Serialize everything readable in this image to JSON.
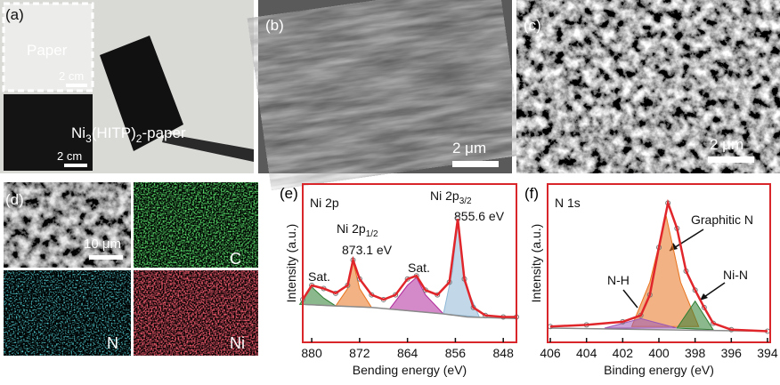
{
  "panels": {
    "a": {
      "label": "(a)",
      "paper_label": "Paper",
      "scale_top": "2 cm",
      "scale_bottom": "2 cm",
      "sample_label_parts": [
        "Ni",
        "3",
        "(HITP)",
        "2",
        "-paper"
      ]
    },
    "b": {
      "label": "(b)",
      "scale": "2 μm"
    },
    "c": {
      "label": "(c)",
      "scale": "2 μm"
    },
    "d": {
      "label": "(d)",
      "scale": "10 μm",
      "maps": [
        "C",
        "N",
        "Ni"
      ]
    }
  },
  "chart_data": [
    {
      "type": "line",
      "panel_label": "(e)",
      "title": "Ni 2p",
      "x_label": "Bending energy (eV)",
      "y_label": "Intensity (a.u.)",
      "xlim": [
        881.5,
        845.8
      ],
      "xticks": [
        880,
        872,
        864,
        856,
        848
      ],
      "ylim": [
        0,
        100
      ],
      "x": [
        881.5,
        880,
        878,
        876,
        874,
        873.1,
        872,
        870,
        868,
        866,
        864,
        862.5,
        861,
        859,
        857,
        855.6,
        854.5,
        853,
        851,
        848,
        845.8
      ],
      "series": [
        {
          "color": "#e0262b",
          "values": [
            27,
            36,
            34,
            31,
            36,
            52,
            40,
            30,
            27,
            30,
            40,
            42,
            33,
            30,
            38,
            78,
            40,
            22,
            17,
            16,
            16
          ]
        }
      ],
      "background": {
        "color": "#8a8a8a",
        "x": [
          881.5,
          876,
          870,
          864,
          858,
          854,
          845.8
        ],
        "values": [
          24,
          23,
          22,
          20,
          18,
          16,
          15
        ]
      },
      "components": [
        {
          "color": "#2e7d32",
          "x": [
            882,
            880,
            878,
            876
          ],
          "values": [
            24,
            35,
            28,
            23
          ]
        },
        {
          "color": "#e8731e",
          "x": [
            876,
            874,
            873.1,
            872,
            870
          ],
          "values": [
            23,
            34,
            51,
            34,
            22
          ]
        },
        {
          "color": "#b0299a",
          "x": [
            867,
            864,
            862.5,
            861,
            858
          ],
          "values": [
            21,
            36,
            41,
            30,
            18
          ]
        },
        {
          "color": "#8fb8d6",
          "x": [
            858,
            856.5,
            855.6,
            854.5,
            852
          ],
          "values": [
            18,
            45,
            77,
            38,
            16
          ]
        }
      ],
      "annotations": {
        "sat1": "Sat.",
        "p12_main": "Ni 2p",
        "p12_sub": "1/2",
        "p12_value": "873.1 eV",
        "sat2": "Sat.",
        "p32_main": "Ni 2p",
        "p32_sub": "3/2",
        "p32_value": "855.6 eV"
      }
    },
    {
      "type": "line",
      "panel_label": "(f)",
      "title": "N 1s",
      "x_label": "Binding energy (eV)",
      "y_label": "Intensity (a.u.)",
      "xlim": [
        406.15,
        393.85
      ],
      "xticks": [
        406,
        404,
        402,
        400,
        398,
        396,
        394
      ],
      "ylim": [
        0,
        100
      ],
      "x": [
        406,
        404,
        402,
        401,
        400.5,
        400,
        399.5,
        399,
        398.5,
        398,
        397.5,
        397,
        396,
        394
      ],
      "series": [
        {
          "color": "#e0262b",
          "values": [
            10,
            11,
            13,
            17,
            30,
            60,
            88,
            72,
            45,
            33,
            22,
            12,
            8,
            7
          ]
        }
      ],
      "background": {
        "color": "#8a8a8a",
        "x": [
          406,
          394
        ],
        "values": [
          9,
          7
        ]
      },
      "components": [
        {
          "color": "#e8731e",
          "x": [
            401.5,
            400.5,
            399.6,
            398.8,
            397.8
          ],
          "values": [
            10,
            38,
            80,
            38,
            10
          ]
        },
        {
          "color": "#9b59b6",
          "x": [
            403,
            401,
            399
          ],
          "values": [
            9,
            15,
            9
          ]
        },
        {
          "color": "#2e7d32",
          "x": [
            399,
            398,
            397
          ],
          "values": [
            9,
            26,
            8
          ]
        }
      ],
      "annotations": {
        "graphitic": "Graphitic N",
        "nh": "N-H",
        "nin": "Ni-N"
      }
    }
  ]
}
